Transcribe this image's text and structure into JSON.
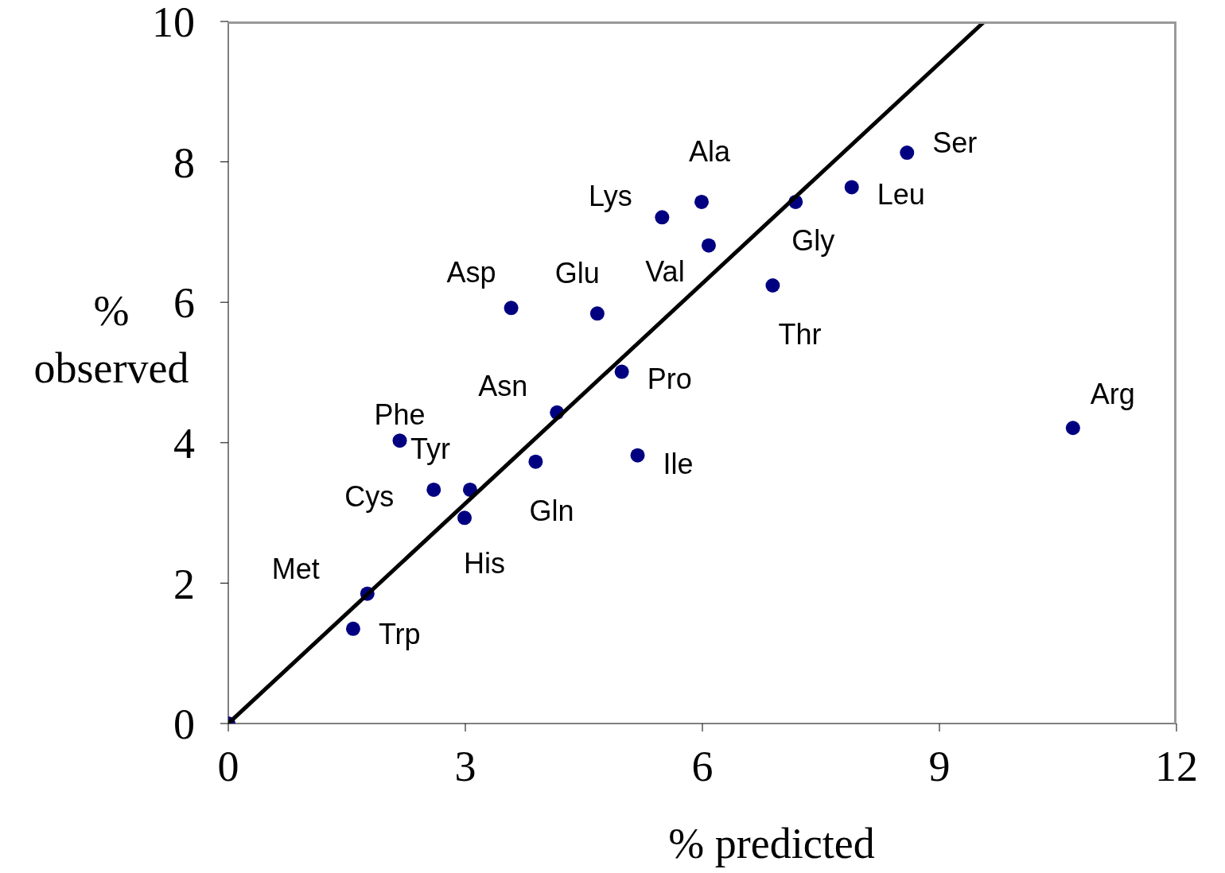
{
  "chart_data": {
    "type": "scatter",
    "xlabel": "% predicted",
    "ylabel": "% observed",
    "xlim": [
      0,
      12
    ],
    "ylim": [
      0,
      10
    ],
    "xticks": [
      0,
      3,
      6,
      9,
      12
    ],
    "yticks": [
      0,
      2,
      4,
      6,
      8,
      10
    ],
    "marker": "circle",
    "series": [
      {
        "color": "#000080",
        "x": [
          0,
          1.58,
          1.76,
          2.17,
          2.6,
          3.06,
          2.99,
          3.58,
          3.89,
          4.16,
          4.67,
          4.98,
          5.18,
          5.49,
          5.99,
          6.08,
          6.89,
          7.18,
          7.89,
          8.59,
          10.69
        ],
        "values": [
          0,
          1.35,
          1.85,
          4.03,
          3.33,
          3.33,
          2.93,
          5.92,
          3.73,
          4.43,
          5.84,
          5.01,
          3.82,
          7.21,
          7.43,
          6.81,
          6.24,
          7.43,
          7.64,
          8.13,
          4.21
        ],
        "value_labels": [
          null,
          "Trp",
          "Met",
          "Phe",
          "Cys",
          "Tyr",
          "His",
          "Asp",
          "Gln",
          "Asn",
          "Glu",
          "Pro",
          "Ile",
          "Lys",
          "Ala",
          "Val",
          "Thr",
          "Gly",
          "Leu",
          "Ser",
          "Arg"
        ]
      },
      {
        "type": "line",
        "marker": "none",
        "color": "#000000",
        "x": [
          0,
          9.57
        ],
        "values": [
          0,
          10
        ]
      }
    ]
  }
}
